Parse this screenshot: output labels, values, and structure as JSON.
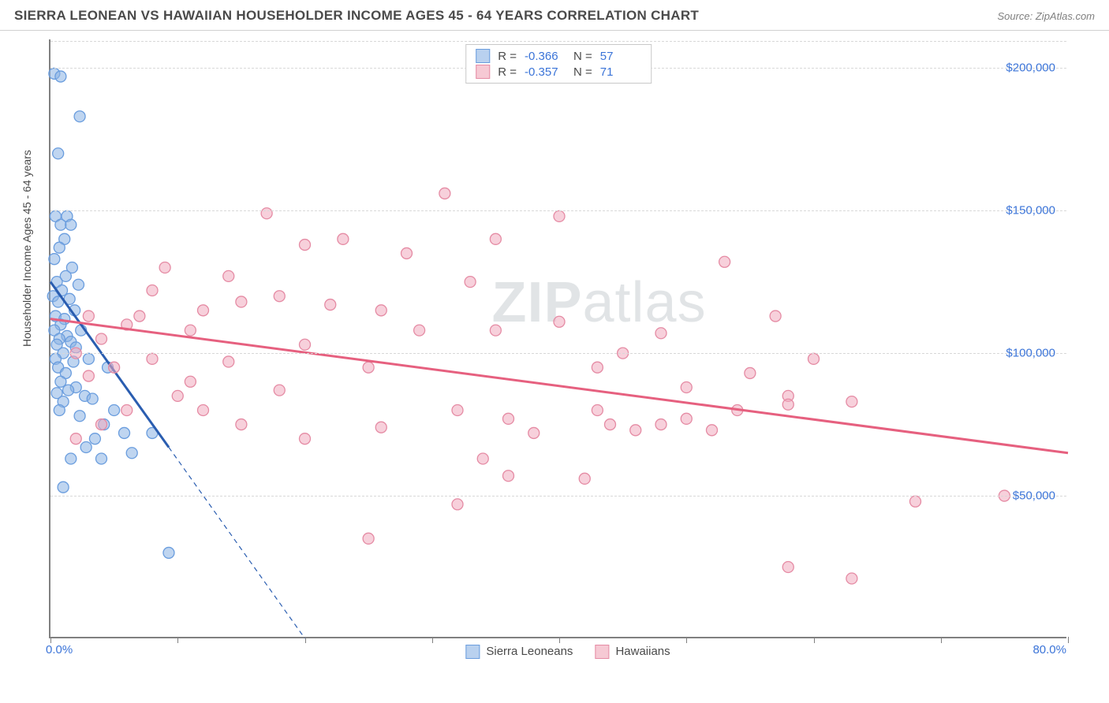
{
  "header": {
    "title": "SIERRA LEONEAN VS HAWAIIAN HOUSEHOLDER INCOME AGES 45 - 64 YEARS CORRELATION CHART",
    "source": "Source: ZipAtlas.com"
  },
  "chart": {
    "type": "scatter",
    "ylabel": "Householder Income Ages 45 - 64 years",
    "watermark_bold": "ZIP",
    "watermark_light": "atlas",
    "background_color": "#ffffff",
    "grid_color": "#d8d8d8",
    "axis_color": "#808080",
    "text_color": "#4a4a4a",
    "value_color": "#3b74d8",
    "xlim": [
      0,
      80
    ],
    "ylim": [
      0,
      210000
    ],
    "xticks": [
      0,
      10,
      20,
      30,
      40,
      50,
      60,
      70,
      80
    ],
    "xtick_labels_shown": {
      "min": "0.0%",
      "max": "80.0%"
    },
    "yticks": [
      50000,
      100000,
      150000,
      200000
    ],
    "ytick_labels": [
      "$50,000",
      "$100,000",
      "$150,000",
      "$200,000"
    ],
    "legend_top": {
      "rows": [
        {
          "swatch_fill": "#b9d1ef",
          "swatch_border": "#6a9dde",
          "r_label": "R =",
          "r_value": "-0.366",
          "n_label": "N =",
          "n_value": "57"
        },
        {
          "swatch_fill": "#f6c9d4",
          "swatch_border": "#e58ba4",
          "r_label": "R =",
          "r_value": "-0.357",
          "n_label": "N =",
          "n_value": "71"
        }
      ]
    },
    "legend_bottom": {
      "items": [
        {
          "swatch_fill": "#b9d1ef",
          "swatch_border": "#6a9dde",
          "label": "Sierra Leoneans"
        },
        {
          "swatch_fill": "#f6c9d4",
          "swatch_border": "#e58ba4",
          "label": "Hawaiians"
        }
      ]
    },
    "series": [
      {
        "name": "Sierra Leoneans",
        "marker_fill": "rgba(139,178,227,0.55)",
        "marker_stroke": "#6a9dde",
        "marker_r": 7,
        "trend_color": "#2a5db0",
        "trend_width": 3,
        "trend_solid": {
          "x1": 0,
          "y1": 125000,
          "x2": 9.3,
          "y2": 67000
        },
        "trend_dash": {
          "x1": 9.3,
          "y1": 67000,
          "x2": 20,
          "y2": 0
        },
        "points": [
          [
            0.3,
            198000
          ],
          [
            0.8,
            197000
          ],
          [
            2.3,
            183000
          ],
          [
            0.6,
            170000
          ],
          [
            0.4,
            148000
          ],
          [
            1.3,
            148000
          ],
          [
            0.8,
            145000
          ],
          [
            1.6,
            145000
          ],
          [
            1.1,
            140000
          ],
          [
            0.7,
            137000
          ],
          [
            0.3,
            133000
          ],
          [
            1.7,
            130000
          ],
          [
            1.2,
            127000
          ],
          [
            0.5,
            125000
          ],
          [
            2.2,
            124000
          ],
          [
            0.9,
            122000
          ],
          [
            0.2,
            120000
          ],
          [
            1.5,
            119000
          ],
          [
            0.6,
            118000
          ],
          [
            1.9,
            115000
          ],
          [
            0.4,
            113000
          ],
          [
            1.1,
            112000
          ],
          [
            0.8,
            110000
          ],
          [
            2.4,
            108000
          ],
          [
            0.3,
            108000
          ],
          [
            1.3,
            106000
          ],
          [
            0.7,
            105000
          ],
          [
            1.6,
            104000
          ],
          [
            0.5,
            103000
          ],
          [
            2.0,
            102000
          ],
          [
            1.0,
            100000
          ],
          [
            0.4,
            98000
          ],
          [
            1.8,
            97000
          ],
          [
            0.6,
            95000
          ],
          [
            3.0,
            98000
          ],
          [
            1.2,
            93000
          ],
          [
            0.8,
            90000
          ],
          [
            2.0,
            88000
          ],
          [
            1.4,
            87000
          ],
          [
            0.5,
            86000
          ],
          [
            2.7,
            85000
          ],
          [
            3.3,
            84000
          ],
          [
            1.0,
            83000
          ],
          [
            0.7,
            80000
          ],
          [
            5.0,
            80000
          ],
          [
            2.3,
            78000
          ],
          [
            4.2,
            75000
          ],
          [
            5.8,
            72000
          ],
          [
            3.5,
            70000
          ],
          [
            2.8,
            67000
          ],
          [
            6.4,
            65000
          ],
          [
            1.6,
            63000
          ],
          [
            4.0,
            63000
          ],
          [
            1.0,
            53000
          ],
          [
            9.3,
            30000
          ],
          [
            8.0,
            72000
          ],
          [
            4.5,
            95000
          ]
        ]
      },
      {
        "name": "Hawaiians",
        "marker_fill": "rgba(240,170,190,0.55)",
        "marker_stroke": "#e58ba4",
        "marker_r": 7,
        "trend_color": "#e6607f",
        "trend_width": 3,
        "trend_solid": {
          "x1": 0,
          "y1": 112000,
          "x2": 80,
          "y2": 65000
        },
        "points": [
          [
            31,
            156000
          ],
          [
            17,
            149000
          ],
          [
            40,
            148000
          ],
          [
            53,
            132000
          ],
          [
            20,
            138000
          ],
          [
            35,
            140000
          ],
          [
            28,
            135000
          ],
          [
            23,
            140000
          ],
          [
            9,
            130000
          ],
          [
            14,
            127000
          ],
          [
            33,
            125000
          ],
          [
            8,
            122000
          ],
          [
            18,
            120000
          ],
          [
            22,
            117000
          ],
          [
            15,
            118000
          ],
          [
            12,
            115000
          ],
          [
            26,
            115000
          ],
          [
            3,
            113000
          ],
          [
            6,
            110000
          ],
          [
            11,
            108000
          ],
          [
            35,
            108000
          ],
          [
            29,
            108000
          ],
          [
            4,
            105000
          ],
          [
            40,
            111000
          ],
          [
            20,
            103000
          ],
          [
            45,
            100000
          ],
          [
            2,
            100000
          ],
          [
            8,
            98000
          ],
          [
            14,
            97000
          ],
          [
            25,
            95000
          ],
          [
            5,
            95000
          ],
          [
            55,
            93000
          ],
          [
            3,
            92000
          ],
          [
            50,
            88000
          ],
          [
            18,
            87000
          ],
          [
            58,
            85000
          ],
          [
            43,
            80000
          ],
          [
            48,
            75000
          ],
          [
            26,
            74000
          ],
          [
            38,
            72000
          ],
          [
            36,
            77000
          ],
          [
            44,
            75000
          ],
          [
            50,
            77000
          ],
          [
            54,
            80000
          ],
          [
            58,
            82000
          ],
          [
            63,
            83000
          ],
          [
            43,
            95000
          ],
          [
            57,
            113000
          ],
          [
            48,
            107000
          ],
          [
            52,
            73000
          ],
          [
            46,
            73000
          ],
          [
            32,
            80000
          ],
          [
            34,
            63000
          ],
          [
            36,
            57000
          ],
          [
            42,
            56000
          ],
          [
            25,
            35000
          ],
          [
            32,
            47000
          ],
          [
            60,
            98000
          ],
          [
            68,
            48000
          ],
          [
            75,
            50000
          ],
          [
            63,
            21000
          ],
          [
            58,
            25000
          ],
          [
            10,
            85000
          ],
          [
            6,
            80000
          ],
          [
            4,
            75000
          ],
          [
            2,
            70000
          ],
          [
            12,
            80000
          ],
          [
            15,
            75000
          ],
          [
            20,
            70000
          ],
          [
            11,
            90000
          ],
          [
            7,
            113000
          ]
        ]
      }
    ]
  }
}
